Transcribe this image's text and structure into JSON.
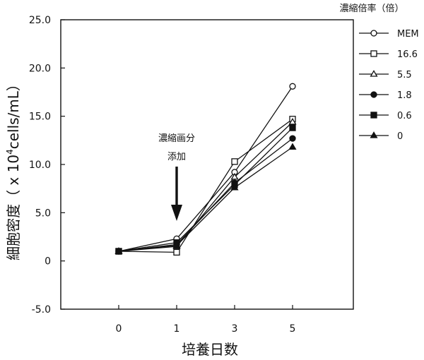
{
  "chart_data": {
    "type": "line",
    "x_positions": [
      "0",
      "1",
      "3",
      "5"
    ],
    "xlabel": "培養日数",
    "ylabel_prefix": "細胞密度（ x 10",
    "ylabel_sup": "4",
    "ylabel_suffix": "cells/mL）",
    "ylim": [
      -5.0,
      25.0
    ],
    "yticks": [
      "25.0",
      "20.0",
      "15.0",
      "10.0",
      "5.0",
      "0",
      "-5.0"
    ],
    "ytick_values": [
      25.0,
      20.0,
      15.0,
      10.0,
      5.0,
      0,
      -5.0
    ],
    "legend_title": "濃縮倍率（倍）",
    "legend_position": "right",
    "annotation": {
      "line1": "濃縮画分",
      "line2": "添加",
      "x": "1"
    },
    "series": [
      {
        "name": "MEM",
        "marker": "open-circle",
        "values": [
          1.0,
          2.3,
          9.2,
          18.1
        ]
      },
      {
        "name": "16.6",
        "marker": "open-square",
        "values": [
          1.0,
          0.9,
          10.3,
          14.7
        ]
      },
      {
        "name": "5.5",
        "marker": "open-triangle",
        "values": [
          1.0,
          1.5,
          8.7,
          14.4
        ]
      },
      {
        "name": "1.8",
        "marker": "filled-circle",
        "values": [
          1.0,
          1.7,
          8.1,
          12.7
        ]
      },
      {
        "name": "0.6",
        "marker": "filled-square",
        "values": [
          1.0,
          1.9,
          7.9,
          13.8
        ]
      },
      {
        "name": "0",
        "marker": "filled-triangle",
        "values": [
          1.0,
          1.6,
          7.6,
          11.8
        ]
      }
    ],
    "colors": {
      "line": "#111111",
      "background": "#ffffff"
    }
  }
}
